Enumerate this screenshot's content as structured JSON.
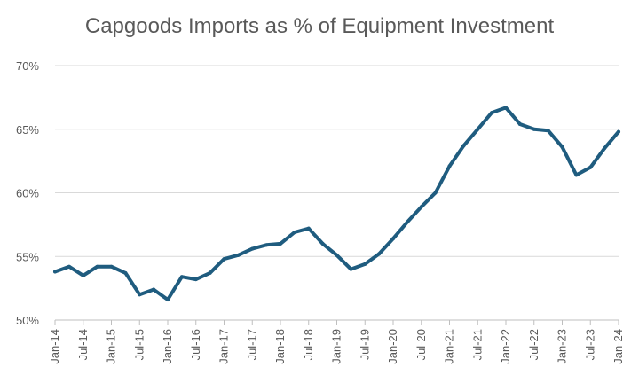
{
  "chart_data": {
    "type": "line",
    "title": "Capgoods Imports as % of Equipment Investment",
    "xlabel": "",
    "ylabel": "",
    "ylim": [
      50,
      70
    ],
    "y_ticks": [
      50,
      55,
      60,
      65,
      70
    ],
    "y_tick_labels": [
      "50%",
      "55%",
      "60%",
      "65%",
      "70%"
    ],
    "y_tick_suffix": "%",
    "grid": true,
    "legend": "none",
    "x_tick_labels": [
      "Jan-14",
      "Jul-14",
      "Jan-15",
      "Jul-15",
      "Jan-16",
      "Jul-16",
      "Jan-17",
      "Jul-17",
      "Jan-18",
      "Jul-18",
      "Jan-19",
      "Jul-19",
      "Jan-20",
      "Jul-20",
      "Jan-21",
      "Jul-21",
      "Jan-22",
      "Jul-22",
      "Jan-23",
      "Jul-23",
      "Jan-24"
    ],
    "x": [
      "Jan-14",
      "Apr-14",
      "Jul-14",
      "Oct-14",
      "Jan-15",
      "Apr-15",
      "Jul-15",
      "Oct-15",
      "Jan-16",
      "Apr-16",
      "Jul-16",
      "Oct-16",
      "Jan-17",
      "Apr-17",
      "Jul-17",
      "Oct-17",
      "Jan-18",
      "Apr-18",
      "Jul-18",
      "Oct-18",
      "Jan-19",
      "Apr-19",
      "Jul-19",
      "Oct-19",
      "Jan-20",
      "Apr-20",
      "Jul-20",
      "Oct-20",
      "Jan-21",
      "Apr-21",
      "Jul-21",
      "Oct-21",
      "Jan-22",
      "Apr-22",
      "Jul-22",
      "Oct-22",
      "Jan-23",
      "Apr-23",
      "Jul-23",
      "Oct-23",
      "Jan-24"
    ],
    "series": [
      {
        "color": "#1f5c7f",
        "values": [
          53.8,
          54.2,
          53.5,
          54.2,
          54.2,
          53.7,
          52.0,
          52.4,
          51.6,
          53.4,
          53.2,
          53.7,
          54.8,
          55.1,
          55.6,
          55.9,
          56.0,
          56.9,
          57.2,
          56.0,
          55.1,
          54.0,
          54.4,
          55.2,
          56.4,
          57.7,
          58.9,
          60.0,
          62.1,
          63.7,
          65.0,
          66.3,
          66.7,
          65.4,
          65.0,
          64.9,
          63.6,
          61.4,
          62.0,
          63.5,
          64.8
        ]
      }
    ]
  }
}
